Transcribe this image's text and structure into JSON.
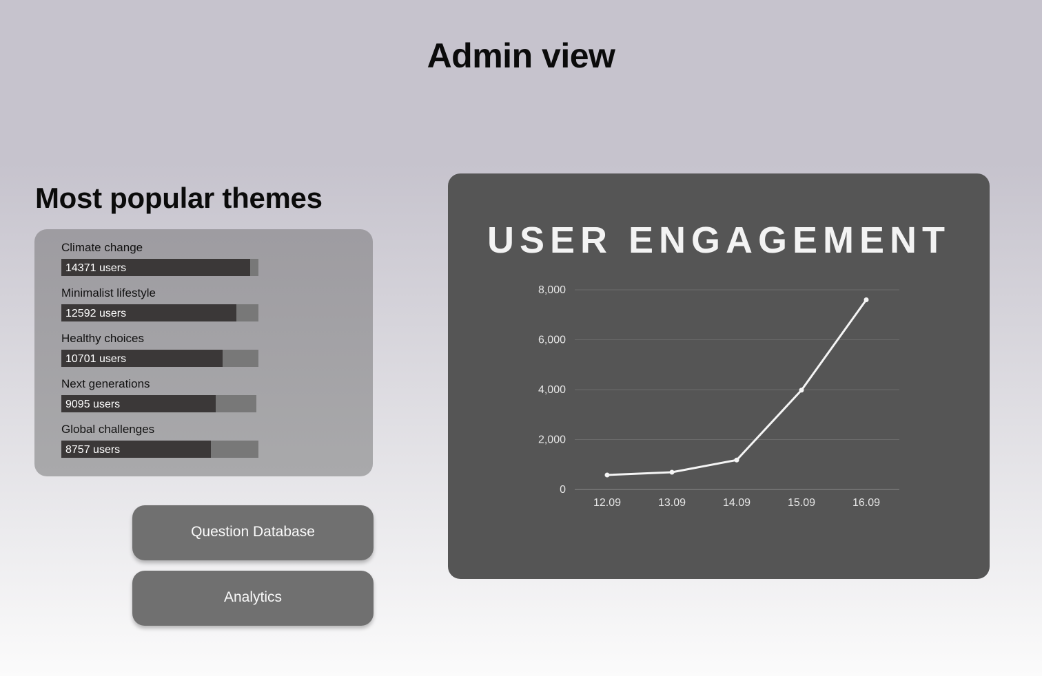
{
  "page": {
    "title": "Admin view"
  },
  "themes": {
    "title": "Most popular themes",
    "items": [
      {
        "label": "Climate change",
        "users_text": "14371 users",
        "users": 14371,
        "fill_fraction": 0.958
      },
      {
        "label": "Minimalist lifestyle",
        "users_text": "12592 users",
        "users": 12592,
        "fill_fraction": 0.888
      },
      {
        "label": "Healthy choices",
        "users_text": "10701 users",
        "users": 10701,
        "fill_fraction": 0.818
      },
      {
        "label": "Next generations",
        "users_text": "9095 users",
        "users": 9095,
        "fill_fraction": 0.79
      },
      {
        "label": "Global challenges",
        "users_text": "8757 users",
        "users": 8757,
        "fill_fraction": 0.76
      }
    ]
  },
  "buttons": {
    "question_database": "Question Database",
    "analytics": "Analytics"
  },
  "chart_data": {
    "type": "line",
    "title": "USER ENGAGEMENT",
    "categories": [
      "12.09",
      "13.09",
      "14.09",
      "15.09",
      "16.09"
    ],
    "series": [
      {
        "name": "User engagement",
        "values": [
          580,
          690,
          1180,
          3980,
          7600
        ]
      }
    ],
    "ylim": [
      0,
      8000
    ],
    "yticks": [
      0,
      2000,
      4000,
      6000,
      8000
    ],
    "ytick_labels": [
      "0",
      "2,000",
      "4,000",
      "6,000",
      "8,000"
    ],
    "xlabel": "",
    "ylabel": "",
    "grid": true,
    "colors": {
      "line": "#f5f5f5",
      "grid": "#6a6a6a",
      "axis": "#8a8a8a",
      "tick_text": "#e6e6e6"
    }
  }
}
